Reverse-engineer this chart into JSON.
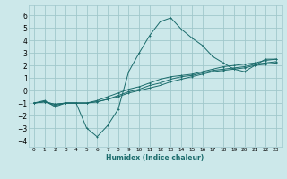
{
  "xlabel": "Humidex (Indice chaleur)",
  "background_color": "#cce8ea",
  "grid_color": "#a0c8cc",
  "line_color": "#1a6b6b",
  "xlim": [
    -0.5,
    23.5
  ],
  "ylim": [
    -4.5,
    6.8
  ],
  "xticks": [
    0,
    1,
    2,
    3,
    4,
    5,
    6,
    7,
    8,
    9,
    10,
    11,
    12,
    13,
    14,
    15,
    16,
    17,
    18,
    19,
    20,
    21,
    22,
    23
  ],
  "yticks": [
    -4,
    -3,
    -2,
    -1,
    0,
    1,
    2,
    3,
    4,
    5,
    6
  ],
  "curve1_x": [
    0,
    1,
    2,
    3,
    4,
    5,
    6,
    7,
    8,
    9,
    10,
    11,
    12,
    13,
    14,
    15,
    16,
    17,
    18,
    19,
    20,
    21,
    22,
    23
  ],
  "curve1_y": [
    -1.0,
    -0.8,
    -1.3,
    -1.0,
    -1.0,
    -3.0,
    -3.7,
    -2.8,
    -1.5,
    1.5,
    3.0,
    4.4,
    5.5,
    5.8,
    4.9,
    4.2,
    3.6,
    2.7,
    2.2,
    1.7,
    1.5,
    2.0,
    2.5,
    2.5
  ],
  "curve2_x": [
    0,
    1,
    2,
    3,
    4,
    5,
    6,
    7,
    8,
    9,
    10,
    11,
    12,
    13,
    14,
    15,
    16,
    17,
    18,
    19,
    20,
    21,
    22,
    23
  ],
  "curve2_y": [
    -1.0,
    -0.9,
    -1.2,
    -1.0,
    -1.0,
    -1.0,
    -0.8,
    -0.5,
    -0.2,
    0.1,
    0.3,
    0.6,
    0.9,
    1.1,
    1.2,
    1.3,
    1.5,
    1.7,
    1.9,
    2.0,
    2.1,
    2.2,
    2.4,
    2.5
  ],
  "curve3_x": [
    0,
    1,
    2,
    3,
    4,
    5,
    6,
    7,
    8,
    9,
    10,
    11,
    12,
    13,
    14,
    15,
    16,
    17,
    18,
    19,
    20,
    21,
    22,
    23
  ],
  "curve3_y": [
    -1.0,
    -0.9,
    -1.1,
    -1.0,
    -1.0,
    -1.0,
    -0.9,
    -0.7,
    -0.4,
    -0.1,
    0.1,
    0.4,
    0.6,
    0.9,
    1.1,
    1.2,
    1.4,
    1.6,
    1.7,
    1.8,
    1.9,
    2.1,
    2.2,
    2.3
  ],
  "curve4_x": [
    0,
    1,
    2,
    3,
    4,
    5,
    6,
    7,
    8,
    9,
    10,
    11,
    12,
    13,
    14,
    15,
    16,
    17,
    18,
    19,
    20,
    21,
    22,
    23
  ],
  "curve4_y": [
    -1.0,
    -0.9,
    -1.1,
    -1.0,
    -1.0,
    -1.0,
    -0.9,
    -0.7,
    -0.5,
    -0.2,
    0.0,
    0.2,
    0.4,
    0.7,
    0.9,
    1.1,
    1.3,
    1.5,
    1.6,
    1.7,
    1.8,
    2.0,
    2.1,
    2.2
  ]
}
